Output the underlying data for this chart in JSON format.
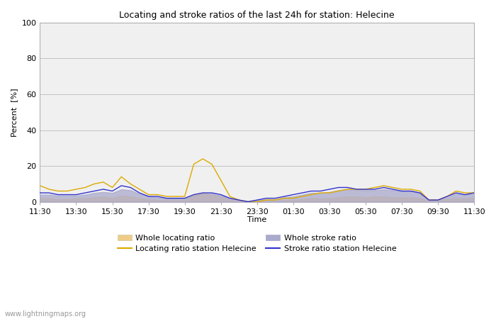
{
  "title": "Locating and stroke ratios of the last 24h for station: Helecine",
  "ylabel": "Percent  [%]",
  "xlabel": "Time",
  "ylim": [
    0,
    100
  ],
  "yticks": [
    0,
    20,
    40,
    60,
    80,
    100
  ],
  "xtick_labels": [
    "11:30",
    "13:30",
    "15:30",
    "17:30",
    "19:30",
    "21:30",
    "23:30",
    "01:30",
    "03:30",
    "05:30",
    "07:30",
    "09:30",
    "11:30"
  ],
  "watermark": "www.lightningmaps.org",
  "background_color": "#ffffff",
  "plot_bg_color": "#f0f0f0",
  "locating_line_color": "#ddaa00",
  "locating_fill_color": "#eecc88",
  "stroke_line_color": "#3333cc",
  "stroke_fill_color": "#aaaacc",
  "locating_ratio": [
    9,
    7,
    6,
    6,
    7,
    8,
    10,
    11,
    8,
    14,
    10,
    7,
    4,
    4,
    3,
    3,
    3,
    21,
    24,
    21,
    12,
    3,
    1,
    0,
    0,
    1,
    1,
    2,
    2,
    3,
    4,
    5,
    5,
    6,
    7,
    7,
    7,
    8,
    9,
    8,
    7,
    7,
    6,
    1,
    1,
    3,
    6,
    5,
    5
  ],
  "stroke_ratio": [
    5,
    5,
    4,
    4,
    4,
    5,
    6,
    7,
    6,
    9,
    8,
    5,
    3,
    3,
    2,
    2,
    2,
    4,
    5,
    5,
    4,
    2,
    1,
    0,
    1,
    2,
    2,
    3,
    4,
    5,
    6,
    6,
    7,
    8,
    8,
    7,
    7,
    7,
    8,
    7,
    6,
    6,
    5,
    1,
    1,
    3,
    5,
    4,
    5
  ],
  "locating_fill": [
    2,
    2,
    1.5,
    1.5,
    2,
    2,
    2.5,
    3,
    2,
    3.5,
    3,
    2,
    1.5,
    1,
    1,
    1,
    1,
    4,
    5,
    4,
    3,
    1,
    0.5,
    0,
    0,
    0.5,
    0.5,
    1,
    1,
    1.5,
    2,
    2,
    2,
    2.5,
    3,
    3,
    2.5,
    3,
    3,
    2.5,
    2.5,
    2.5,
    2,
    0.5,
    0.5,
    1.5,
    2,
    2,
    2
  ],
  "stroke_fill": [
    4,
    4,
    3.5,
    3.5,
    3.5,
    4,
    5,
    5.5,
    5,
    7,
    6.5,
    4.5,
    3,
    2.5,
    2,
    2,
    2,
    3.5,
    4.5,
    4.5,
    3.5,
    2,
    1,
    0.5,
    1,
    1.5,
    1.5,
    2.5,
    3,
    4,
    5,
    5,
    5.5,
    6.5,
    7,
    6.5,
    6.5,
    6.5,
    7,
    6.5,
    6,
    6,
    5,
    1,
    1,
    2.5,
    4.5,
    4,
    4.5
  ]
}
